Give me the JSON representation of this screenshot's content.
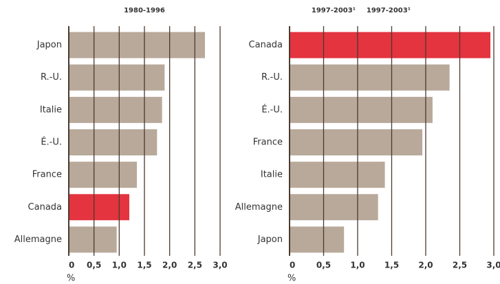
{
  "chart_data": [
    {
      "type": "bar",
      "orientation": "horizontal",
      "titles": [
        "1980-1996"
      ],
      "categories": [
        "Japon",
        "R.-U.",
        "Italie",
        "É.-U.",
        "France",
        "Canada",
        "Allemagne"
      ],
      "values": [
        2.7,
        1.9,
        1.85,
        1.75,
        1.35,
        1.2,
        0.95
      ],
      "colors": [
        "#b8a99a",
        "#b8a99a",
        "#b8a99a",
        "#b8a99a",
        "#b8a99a",
        "#e3343f",
        "#b8a99a"
      ],
      "xlim": [
        0,
        3
      ],
      "xticks": [
        0,
        {
          "value": 0.5,
          "label": "0,5"
        },
        {
          "value": 1,
          "label": "1,0"
        },
        {
          "value": 1.5,
          "label": "1,5"
        },
        {
          "value": 2,
          "label": "2,0"
        },
        {
          "value": 2.5,
          "label": "2,5"
        },
        {
          "value": 3,
          "label": "3,0"
        }
      ],
      "xlabel": "%",
      "grid": true
    },
    {
      "type": "bar",
      "orientation": "horizontal",
      "titles": [
        "1997-2003¹",
        "1997-2003¹"
      ],
      "categories": [
        "Canada",
        "R.-U.",
        "É.-U.",
        "France",
        "Italie",
        "Allemagne",
        "Japon"
      ],
      "values": [
        2.95,
        2.35,
        2.1,
        1.95,
        1.4,
        1.3,
        0.8
      ],
      "colors": [
        "#e3343f",
        "#b8a99a",
        "#b8a99a",
        "#b8a99a",
        "#b8a99a",
        "#b8a99a",
        "#b8a99a"
      ],
      "xlim": [
        0,
        3
      ],
      "xticks": [
        0,
        {
          "value": 0.5,
          "label": "0,5"
        },
        {
          "value": 1,
          "label": "1,0"
        },
        {
          "value": 1.5,
          "label": "1,5"
        },
        {
          "value": 2,
          "label": "2,0"
        },
        {
          "value": 2.5,
          "label": "2,5"
        },
        {
          "value": 3,
          "label": "3,0"
        }
      ],
      "xlabel": "%",
      "grid": true
    }
  ]
}
